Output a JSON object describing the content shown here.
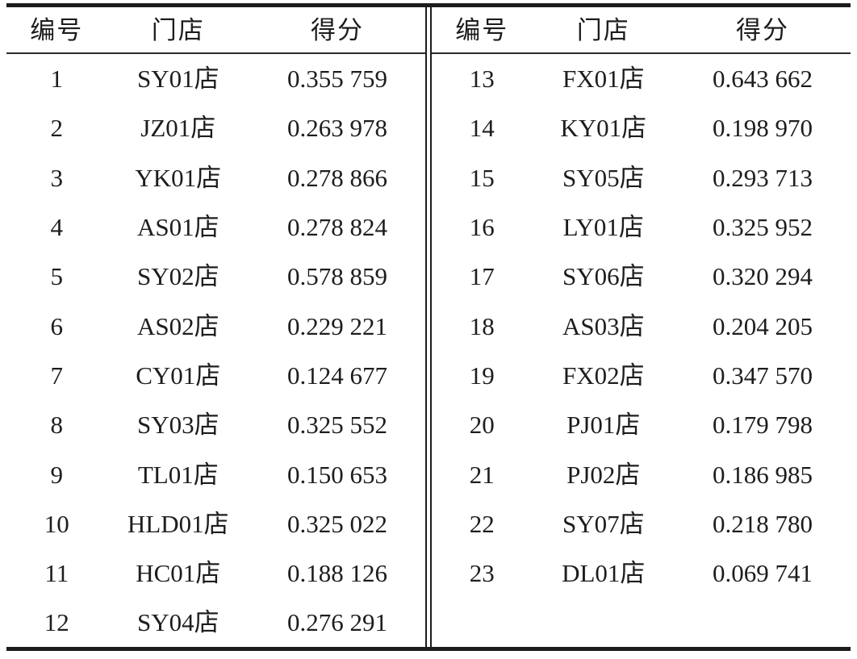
{
  "table": {
    "columns": [
      "编号",
      "门店",
      "得分"
    ],
    "left_rows": [
      {
        "no": "1",
        "store": "SY01店",
        "score": "0.355 759"
      },
      {
        "no": "2",
        "store": "JZ01店",
        "score": "0.263 978"
      },
      {
        "no": "3",
        "store": "YK01店",
        "score": "0.278 866"
      },
      {
        "no": "4",
        "store": "AS01店",
        "score": "0.278 824"
      },
      {
        "no": "5",
        "store": "SY02店",
        "score": "0.578 859"
      },
      {
        "no": "6",
        "store": "AS02店",
        "score": "0.229 221"
      },
      {
        "no": "7",
        "store": "CY01店",
        "score": "0.124 677"
      },
      {
        "no": "8",
        "store": "SY03店",
        "score": "0.325 552"
      },
      {
        "no": "9",
        "store": "TL01店",
        "score": "0.150 653"
      },
      {
        "no": "10",
        "store": "HLD01店",
        "score": "0.325 022"
      },
      {
        "no": "11",
        "store": "HC01店",
        "score": "0.188 126"
      },
      {
        "no": "12",
        "store": "SY04店",
        "score": "0.276 291"
      }
    ],
    "right_rows": [
      {
        "no": "13",
        "store": "FX01店",
        "score": "0.643 662"
      },
      {
        "no": "14",
        "store": "KY01店",
        "score": "0.198 970"
      },
      {
        "no": "15",
        "store": "SY05店",
        "score": "0.293 713"
      },
      {
        "no": "16",
        "store": "LY01店",
        "score": "0.325 952"
      },
      {
        "no": "17",
        "store": "SY06店",
        "score": "0.320 294"
      },
      {
        "no": "18",
        "store": "AS03店",
        "score": "0.204 205"
      },
      {
        "no": "19",
        "store": "FX02店",
        "score": "0.347 570"
      },
      {
        "no": "20",
        "store": "PJ01店",
        "score": "0.179 798"
      },
      {
        "no": "21",
        "store": "PJ02店",
        "score": "0.186 985"
      },
      {
        "no": "22",
        "store": "SY07店",
        "score": "0.218 780"
      },
      {
        "no": "23",
        "store": "DL01店",
        "score": "0.069 741"
      }
    ],
    "colors": {
      "rule": "#1c1c1c",
      "text": "#1d1d1d",
      "background": "#ffffff"
    }
  }
}
